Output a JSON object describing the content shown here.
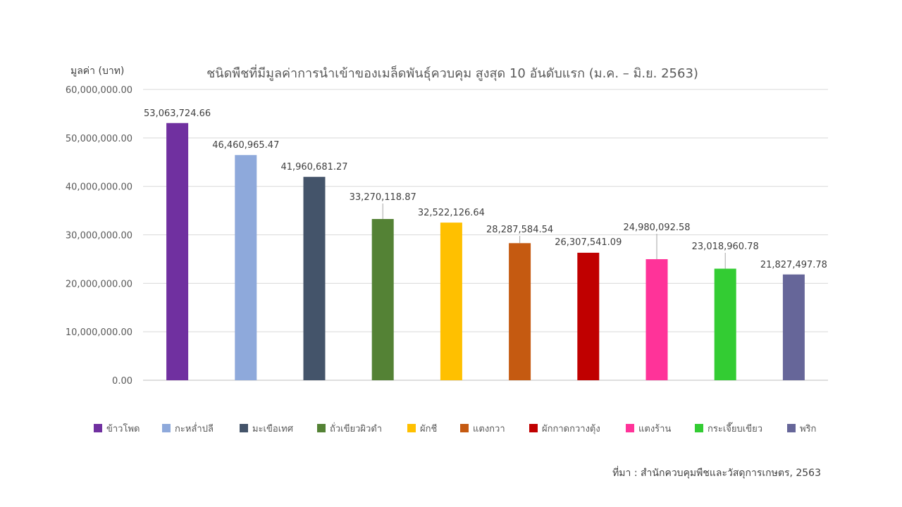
{
  "chart_data": {
    "type": "bar",
    "title": "ชนิดพืชที่มีมูลค่าการนำเข้าของเมล็ดพันธุ์ควบคุม สูงสุด 10 อันดับแรก (ม.ค. – มิ.ย. 2563)",
    "ylabel": "มูลค่า (บาท)",
    "xlabel": "",
    "ylim": [
      0,
      60000000
    ],
    "ytick_values": [
      0,
      10000000,
      20000000,
      30000000,
      40000000,
      50000000,
      60000000
    ],
    "yticks": [
      "0.00",
      "10,000,000.00",
      "20,000,000.00",
      "30,000,000.00",
      "40,000,000.00",
      "50,000,000.00",
      "60,000,000.00"
    ],
    "grid": true,
    "legend_position": "bottom",
    "categories": [
      "ข้าวโพด",
      "กะหล่ำปลี",
      "มะเขือเทศ",
      "ถั่วเขียวผิวดำ",
      "ผักชี",
      "แตงกวา",
      "ผักกาดกวางตุ้ง",
      "แตงร้าน",
      "กระเจี๊ยบเขียว",
      "พริก"
    ],
    "values": [
      53063724.66,
      46460965.47,
      41960681.27,
      33270118.87,
      32522126.64,
      28287584.54,
      26307541.09,
      24980092.58,
      23018960.78,
      21827497.78
    ],
    "value_labels": [
      "53,063,724.66",
      "46,460,965.47",
      "41,960,681.27",
      "33,270,118.87",
      "32,522,126.64",
      "28,287,584.54",
      "26,307,541.09",
      "24,980,092.58",
      "23,018,960.78",
      "21,827,497.78"
    ],
    "colors": [
      "#7030A0",
      "#8EA9DB",
      "#44546A",
      "#548235",
      "#FFC000",
      "#C55A11",
      "#C00000",
      "#FF3399",
      "#33CC33",
      "#666699"
    ]
  },
  "source": "ที่มา : สำนักควบคุมพืชและวัสดุการเกษตร, 2563"
}
